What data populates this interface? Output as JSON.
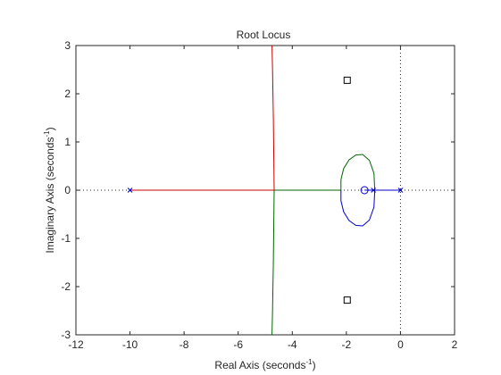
{
  "chart_data": {
    "type": "scatter",
    "title": "Root Locus",
    "xlabel": {
      "text": "Real Axis (seconds",
      "sup": "-1",
      "tail": ")"
    },
    "ylabel": {
      "text": "Imaginary Axis (seconds",
      "sup": "-1",
      "tail": ")"
    },
    "xlim": [
      -12,
      2
    ],
    "ylim": [
      -3,
      3
    ],
    "xticks": [
      -12,
      -10,
      -8,
      -6,
      -4,
      -2,
      0,
      2
    ],
    "yticks": [
      -3,
      -2,
      -1,
      0,
      1,
      2,
      3
    ],
    "grid": false,
    "reference_lines": {
      "real_axis": 0,
      "imaginary_axis": 0,
      "style": "dotted"
    },
    "poles": [
      {
        "x": -10,
        "y": 0
      },
      {
        "x": -1,
        "y": 0
      },
      {
        "x": 0,
        "y": 0
      }
    ],
    "zeros": [
      {
        "x": -1.33,
        "y": 0
      }
    ],
    "markers_square": [
      {
        "x": -1.97,
        "y": 2.28
      },
      {
        "x": -1.97,
        "y": -2.28
      }
    ],
    "branches": [
      {
        "color": "#cc0000",
        "points": [
          [
            -10,
            0
          ],
          [
            -4.67,
            0
          ],
          [
            -4.68,
            0.5
          ],
          [
            -4.7,
            1.5
          ],
          [
            -4.73,
            2.5
          ],
          [
            -4.75,
            3
          ]
        ]
      },
      {
        "color": "#006600",
        "points": [
          [
            -4.67,
            0
          ],
          [
            -4.68,
            -0.5
          ],
          [
            -4.7,
            -1.5
          ],
          [
            -4.73,
            -2.5
          ],
          [
            -4.75,
            -3
          ]
        ]
      },
      {
        "color": "#006600",
        "points": [
          [
            -4.67,
            0
          ],
          [
            -2.2,
            0
          ],
          [
            -2.2,
            0.22
          ],
          [
            -2.1,
            0.45
          ],
          [
            -1.9,
            0.63
          ],
          [
            -1.65,
            0.73
          ],
          [
            -1.4,
            0.74
          ],
          [
            -1.15,
            0.62
          ],
          [
            -0.98,
            0.35
          ],
          [
            -0.95,
            0
          ]
        ]
      },
      {
        "color": "#0000cc",
        "points": [
          [
            -2.2,
            0
          ],
          [
            -2.2,
            -0.22
          ],
          [
            -2.1,
            -0.45
          ],
          [
            -1.9,
            -0.63
          ],
          [
            -1.65,
            -0.73
          ],
          [
            -1.4,
            -0.74
          ],
          [
            -1.15,
            -0.62
          ],
          [
            -0.98,
            -0.35
          ],
          [
            -0.95,
            0
          ]
        ]
      },
      {
        "color": "#0000cc",
        "points": [
          [
            -1.33,
            0
          ],
          [
            -1,
            0
          ],
          [
            -0.5,
            0
          ],
          [
            0,
            0
          ]
        ]
      }
    ]
  }
}
